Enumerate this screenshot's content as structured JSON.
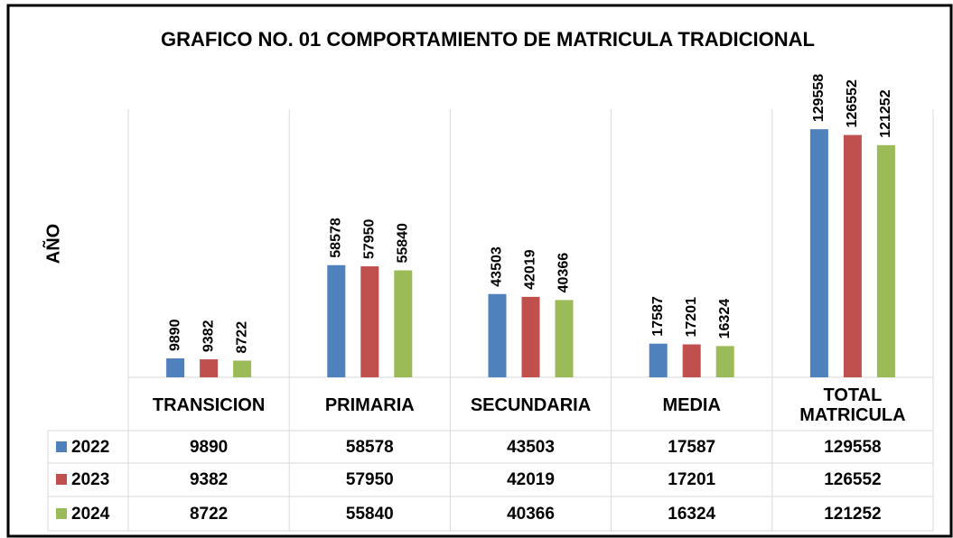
{
  "chart_data": {
    "type": "bar",
    "title": "GRAFICO NO. 01 COMPORTAMIENTO DE MATRICULA TRADICIONAL",
    "ylabel": "AÑO",
    "categories": [
      "TRANSICION",
      "PRIMARIA",
      "SECUNDARIA",
      "MEDIA",
      "TOTAL MATRICULA"
    ],
    "series": [
      {
        "name": "2022",
        "color": "#4f81bd",
        "values": [
          9890,
          58578,
          43503,
          17587,
          129558
        ]
      },
      {
        "name": "2023",
        "color": "#c0504d",
        "values": [
          9382,
          57950,
          42019,
          17201,
          126552
        ]
      },
      {
        "name": "2024",
        "color": "#9bbb59",
        "values": [
          8722,
          55840,
          40366,
          16324,
          121252
        ]
      }
    ],
    "ylim": [
      0,
      140000
    ]
  }
}
